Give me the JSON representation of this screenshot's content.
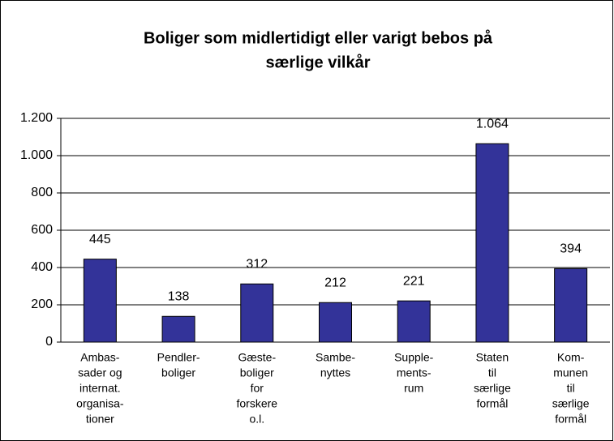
{
  "chart_data": {
    "type": "bar",
    "title": [
      "Boliger som midlertidigt eller varigt bebos på",
      "særlige vilkår"
    ],
    "categories": [
      [
        "Ambas-",
        "sader og",
        "internat.",
        "organisa-",
        "tioner"
      ],
      [
        "Pendler-",
        "boliger"
      ],
      [
        "Gæste-",
        "boliger",
        "for",
        "forskere",
        "o.l."
      ],
      [
        "Sambe-",
        "nyttes"
      ],
      [
        "Supple-",
        "ments-",
        "rum"
      ],
      [
        "Staten",
        "til",
        "særlige",
        "formål"
      ],
      [
        "Kom-",
        "munen",
        "til",
        "særlige",
        "formål"
      ]
    ],
    "values": [
      445,
      138,
      312,
      212,
      221,
      1064,
      394
    ],
    "value_labels": [
      "445",
      "138",
      "312",
      "212",
      "221",
      "1.064",
      "394"
    ],
    "color": "#333399",
    "ylim": [
      0,
      1200
    ],
    "yticks": [
      0,
      200,
      400,
      600,
      800,
      {
        "value": 1000,
        "label": "1.000"
      },
      {
        "value": 1200,
        "label": "1.200"
      }
    ],
    "grid": true
  }
}
